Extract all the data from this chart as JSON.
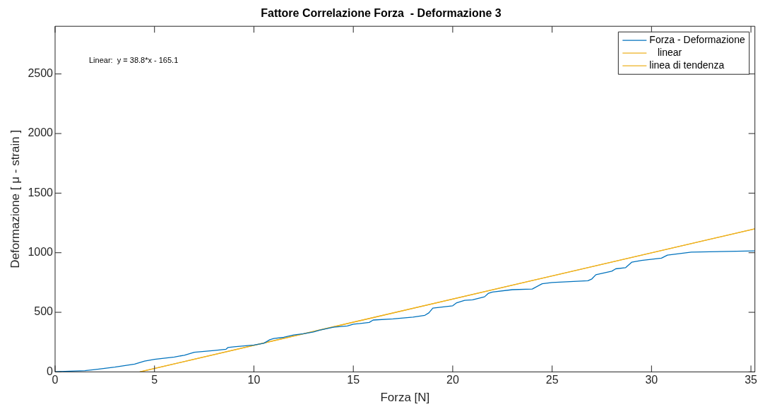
{
  "chart_data": {
    "type": "line",
    "title": "Fattore Correlazione Forza  - Deformazione 3",
    "xlabel": "Forza [N]",
    "ylabel": "Deformazione [ μ - strain ]",
    "annotations": [
      "Linear:  y = 38.8*x - 165.1"
    ],
    "xlim": [
      0,
      35.2
    ],
    "xticks": [
      0,
      5,
      10,
      15,
      20,
      25,
      30,
      35
    ],
    "ylim": [
      0,
      2900
    ],
    "yticks": [
      0,
      500,
      1000,
      1500,
      2000,
      2500
    ],
    "grid": false,
    "legend": "top right",
    "marker": "none",
    "line_style": "solid",
    "series": [
      {
        "name": "Forza - Deformazione",
        "color": "#0072bd",
        "x": [
          0,
          1.5,
          2,
          3,
          4,
          4.5,
          5,
          6,
          6.5,
          7,
          8,
          8.6,
          8.7,
          9,
          10,
          10.5,
          10.8,
          11,
          11.5,
          12,
          12.5,
          13,
          13.3,
          14,
          14.7,
          15,
          15.8,
          16,
          17,
          18,
          18.6,
          18.8,
          19,
          20,
          20.2,
          20.6,
          21,
          21.6,
          21.8,
          22,
          23,
          24,
          24.5,
          25,
          26.8,
          27,
          27.2,
          28,
          28.2,
          28.7,
          29,
          29.5,
          30.5,
          30.8,
          32,
          35.2
        ],
        "values": [
          2,
          10,
          20,
          40,
          65,
          90,
          105,
          125,
          140,
          165,
          180,
          190,
          205,
          210,
          225,
          240,
          270,
          280,
          290,
          310,
          320,
          335,
          350,
          375,
          385,
          400,
          415,
          435,
          445,
          460,
          475,
          495,
          535,
          555,
          580,
          600,
          605,
          630,
          660,
          670,
          690,
          695,
          740,
          750,
          765,
          780,
          815,
          845,
          865,
          875,
          920,
          935,
          955,
          980,
          1005,
          1015
        ]
      },
      {
        "name": "   linear",
        "color": "#edb120",
        "x": [
          4.26,
          35.2
        ],
        "values": [
          0,
          1201
        ]
      },
      {
        "name": "linea di tendenza",
        "color": "#edb120",
        "x": [
          4.26,
          35.2
        ],
        "values": [
          0,
          1201
        ]
      }
    ]
  }
}
